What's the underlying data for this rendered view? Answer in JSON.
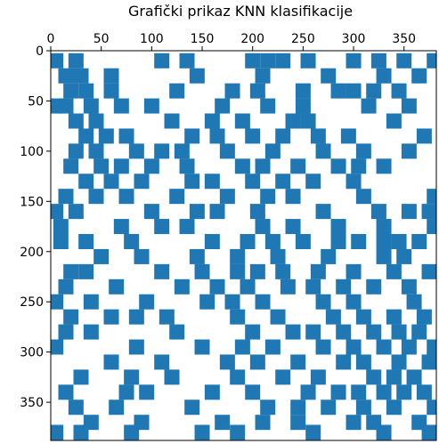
{
  "chart_data": {
    "type": "scatter",
    "title": "Grafički prikaz KNN klasifikacije",
    "color": "#1f77b4",
    "marker": "square",
    "y_inverted": true,
    "x_axis_top": true,
    "xlim": [
      0,
      382
    ],
    "ylim": [
      0,
      388
    ],
    "xticks": [
      0,
      50,
      100,
      150,
      200,
      250,
      300,
      350
    ],
    "yticks": [
      0,
      50,
      100,
      150,
      200,
      250,
      300,
      350
    ],
    "x": [
      5,
      25,
      110,
      135,
      200,
      215,
      230,
      255,
      300,
      325,
      350,
      380,
      15,
      30,
      60,
      145,
      210,
      275,
      330,
      365,
      20,
      35,
      60,
      125,
      180,
      205,
      250,
      285,
      300,
      320,
      345,
      5,
      15,
      40,
      70,
      100,
      170,
      215,
      250,
      315,
      355,
      25,
      45,
      120,
      160,
      190,
      240,
      255,
      340,
      35,
      55,
      75,
      140,
      165,
      200,
      230,
      265,
      295,
      370,
      25,
      45,
      85,
      110,
      130,
      175,
      220,
      270,
      310,
      355,
      20,
      50,
      70,
      100,
      135,
      190,
      210,
      245,
      285,
      305,
      330,
      35,
      60,
      90,
      140,
      160,
      200,
      230,
      260,
      300,
      15,
      45,
      75,
      125,
      175,
      215,
      240,
      310,
      380,
      5,
      25,
      100,
      145,
      165,
      205,
      270,
      325,
      355,
      375,
      10,
      70,
      110,
      135,
      210,
      240,
      285,
      330,
      380,
      10,
      35,
      80,
      160,
      195,
      220,
      250,
      285,
      305,
      330,
      345,
      365,
      50,
      90,
      145,
      185,
      225,
      275,
      330,
      350,
      20,
      35,
      110,
      150,
      185,
      205,
      230,
      265,
      300,
      340,
      375,
      15,
      65,
      130,
      165,
      195,
      235,
      260,
      290,
      320,
      355,
      5,
      40,
      95,
      155,
      180,
      210,
      270,
      300,
      360,
      20,
      60,
      85,
      115,
      185,
      225,
      280,
      310,
      340,
      370,
      15,
      40,
      125,
      200,
      240,
      260,
      290,
      320,
      345,
      365,
      5,
      85,
      150,
      190,
      220,
      270,
      300,
      330,
      355,
      380,
      60,
      110,
      175,
      205,
      245,
      290,
      310,
      345,
      375,
      30,
      80,
      120,
      185,
      230,
      265,
      320,
      340,
      360,
      15,
      75,
      95,
      160,
      200,
      255,
      285,
      305,
      330,
      350,
      370,
      25,
      65,
      140,
      215,
      245,
      275,
      310,
      340,
      380,
      40,
      90,
      170,
      210,
      245,
      300,
      320,
      365,
      5,
      30,
      80,
      150,
      185,
      260,
      330,
      375
    ],
    "values": [
      10,
      10,
      10,
      10,
      10,
      10,
      10,
      10,
      10,
      10,
      10,
      10,
      25,
      25,
      25,
      25,
      25,
      25,
      25,
      25,
      40,
      40,
      40,
      40,
      40,
      40,
      40,
      40,
      40,
      40,
      40,
      55,
      55,
      55,
      55,
      55,
      55,
      55,
      55,
      55,
      55,
      70,
      70,
      70,
      70,
      70,
      70,
      70,
      70,
      85,
      85,
      85,
      85,
      85,
      85,
      85,
      85,
      85,
      85,
      100,
      100,
      100,
      100,
      100,
      100,
      100,
      100,
      100,
      100,
      115,
      115,
      115,
      115,
      115,
      115,
      115,
      115,
      115,
      115,
      115,
      130,
      130,
      130,
      130,
      130,
      130,
      130,
      130,
      130,
      145,
      145,
      145,
      145,
      145,
      145,
      145,
      145,
      145,
      160,
      160,
      160,
      160,
      160,
      160,
      160,
      160,
      160,
      160,
      175,
      175,
      175,
      175,
      175,
      175,
      175,
      175,
      175,
      190,
      190,
      190,
      190,
      190,
      190,
      190,
      190,
      190,
      190,
      190,
      190,
      205,
      205,
      205,
      205,
      205,
      205,
      205,
      205,
      220,
      220,
      220,
      220,
      220,
      220,
      220,
      220,
      220,
      220,
      220,
      235,
      235,
      235,
      235,
      235,
      235,
      235,
      235,
      235,
      235,
      250,
      250,
      250,
      250,
      250,
      250,
      250,
      250,
      250,
      265,
      265,
      265,
      265,
      265,
      265,
      265,
      265,
      265,
      265,
      280,
      280,
      280,
      280,
      280,
      280,
      280,
      280,
      280,
      280,
      295,
      295,
      295,
      295,
      295,
      295,
      295,
      295,
      295,
      295,
      310,
      310,
      310,
      310,
      310,
      310,
      310,
      310,
      310,
      325,
      325,
      325,
      325,
      325,
      325,
      325,
      325,
      325,
      340,
      340,
      340,
      340,
      340,
      340,
      340,
      340,
      340,
      340,
      340,
      355,
      355,
      355,
      355,
      355,
      355,
      355,
      355,
      355,
      370,
      370,
      370,
      370,
      370,
      370,
      370,
      370,
      380,
      380,
      380,
      380,
      380,
      380,
      380,
      380
    ]
  }
}
